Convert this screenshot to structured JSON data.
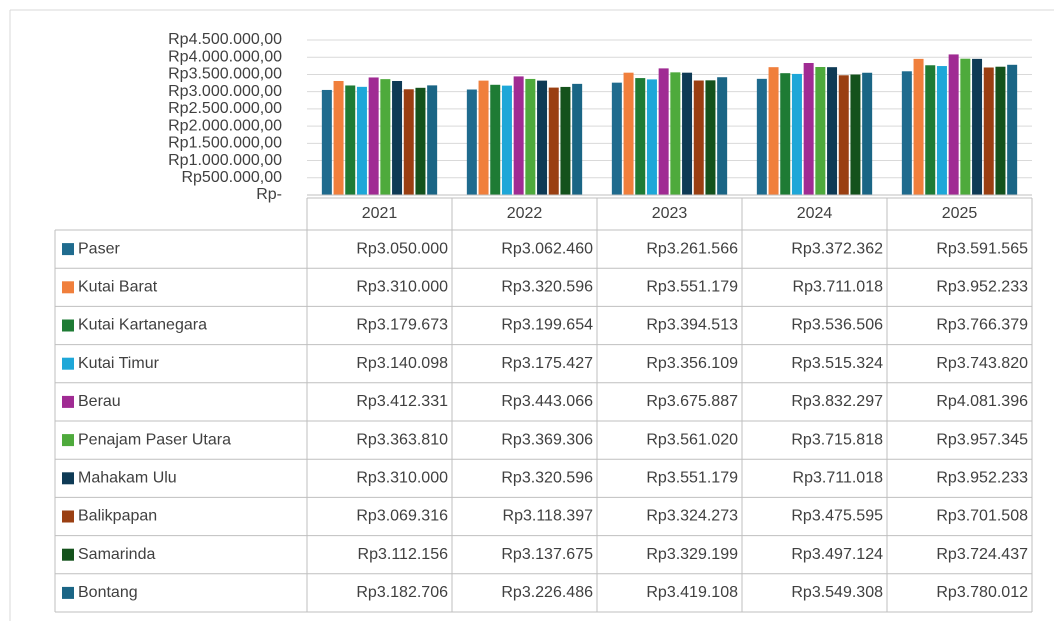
{
  "chart_data": {
    "type": "bar",
    "categories": [
      "2021",
      "2022",
      "2023",
      "2024",
      "2025"
    ],
    "ylim": [
      0,
      4500000
    ],
    "yticks": [
      {
        "value": 0,
        "label": "Rp-"
      },
      {
        "value": 500000,
        "label": "Rp500.000,00"
      },
      {
        "value": 1000000,
        "label": "Rp1.000.000,00"
      },
      {
        "value": 1500000,
        "label": "Rp1.500.000,00"
      },
      {
        "value": 2000000,
        "label": "Rp2.000.000,00"
      },
      {
        "value": 2500000,
        "label": "Rp2.500.000,00"
      },
      {
        "value": 3000000,
        "label": "Rp3.000.000,00"
      },
      {
        "value": 3500000,
        "label": "Rp3.500.000,00"
      },
      {
        "value": 4000000,
        "label": "Rp4.000.000,00"
      },
      {
        "value": 4500000,
        "label": "Rp4.500.000,00"
      }
    ],
    "grid": true,
    "series": [
      {
        "name": "Paser",
        "color": "#1f6b8e",
        "values": [
          3050000,
          3062460,
          3261566,
          3372362,
          3591565
        ],
        "value_labels": [
          "Rp3.050.000",
          "Rp3.062.460",
          "Rp3.261.566",
          "Rp3.372.362",
          "Rp3.591.565"
        ]
      },
      {
        "name": "Kutai Barat",
        "color": "#f07f3c",
        "values": [
          3310000,
          3320596,
          3551179,
          3711018,
          3952233
        ],
        "value_labels": [
          "Rp3.310.000",
          "Rp3.320.596",
          "Rp3.551.179",
          "Rp3.711.018",
          "Rp3.952.233"
        ]
      },
      {
        "name": "Kutai Kartanegara",
        "color": "#1e7b34",
        "values": [
          3179673,
          3199654,
          3394513,
          3536506,
          3766379
        ],
        "value_labels": [
          "Rp3.179.673",
          "Rp3.199.654",
          "Rp3.394.513",
          "Rp3.536.506",
          "Rp3.766.379"
        ]
      },
      {
        "name": "Kutai Timur",
        "color": "#1ea7d8",
        "values": [
          3140098,
          3175427,
          3356109,
          3515324,
          3743820
        ],
        "value_labels": [
          "Rp3.140.098",
          "Rp3.175.427",
          "Rp3.356.109",
          "Rp3.515.324",
          "Rp3.743.820"
        ]
      },
      {
        "name": "Berau",
        "color": "#a02b93",
        "values": [
          3412331,
          3443066,
          3675887,
          3832297,
          4081396
        ],
        "value_labels": [
          "Rp3.412.331",
          "Rp3.443.066",
          "Rp3.675.887",
          "Rp3.832.297",
          "Rp4.081.396"
        ]
      },
      {
        "name": "Penajam Paser Utara",
        "color": "#4eaa3c",
        "values": [
          3363810,
          3369306,
          3561020,
          3715818,
          3957345
        ],
        "value_labels": [
          "Rp3.363.810",
          "Rp3.369.306",
          "Rp3.561.020",
          "Rp3.715.818",
          "Rp3.957.345"
        ]
      },
      {
        "name": "Mahakam Ulu",
        "color": "#0e3a55",
        "values": [
          3310000,
          3320596,
          3551179,
          3711018,
          3952233
        ],
        "value_labels": [
          "Rp3.310.000",
          "Rp3.320.596",
          "Rp3.551.179",
          "Rp3.711.018",
          "Rp3.952.233"
        ]
      },
      {
        "name": "Balikpapan",
        "color": "#9a3f12",
        "values": [
          3069316,
          3118397,
          3324273,
          3475595,
          3701508
        ],
        "value_labels": [
          "Rp3.069.316",
          "Rp3.118.397",
          "Rp3.324.273",
          "Rp3.475.595",
          "Rp3.701.508"
        ]
      },
      {
        "name": "Samarinda",
        "color": "#14521c",
        "values": [
          3112156,
          3137675,
          3329199,
          3497124,
          3724437
        ],
        "value_labels": [
          "Rp3.112.156",
          "Rp3.137.675",
          "Rp3.329.199",
          "Rp3.497.124",
          "Rp3.724.437"
        ]
      },
      {
        "name": "Bontang",
        "color": "#1a6585",
        "values": [
          3182706,
          3226486,
          3419108,
          3549308,
          3780012
        ],
        "value_labels": [
          "Rp3.182.706",
          "Rp3.226.486",
          "Rp3.419.108",
          "Rp3.549.308",
          "Rp3.780.012"
        ]
      }
    ]
  }
}
